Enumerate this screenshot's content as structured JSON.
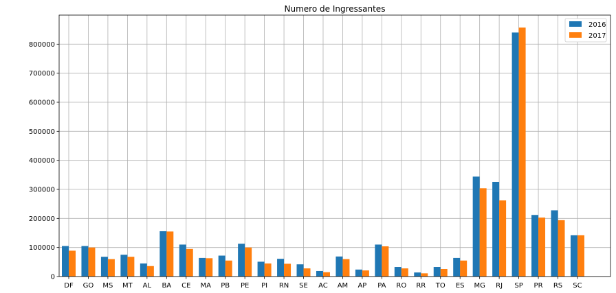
{
  "chart_data": {
    "type": "bar",
    "title": "Numero de Ingressantes",
    "xlabel": "",
    "ylabel": "",
    "categories": [
      "DF",
      "GO",
      "MS",
      "MT",
      "AL",
      "BA",
      "CE",
      "MA",
      "PB",
      "PE",
      "PI",
      "RN",
      "SE",
      "AC",
      "AM",
      "AP",
      "PA",
      "RO",
      "RR",
      "TO",
      "ES",
      "MG",
      "RJ",
      "SP",
      "PR",
      "RS",
      "SC"
    ],
    "series": [
      {
        "name": "2016",
        "color": "#1f77b4",
        "values": [
          105000,
          105000,
          68000,
          75000,
          45000,
          156000,
          110000,
          64000,
          72000,
          113000,
          51000,
          61000,
          42000,
          19000,
          69000,
          24000,
          110000,
          33000,
          14000,
          33000,
          64000,
          344000,
          326000,
          840000,
          212000,
          228000,
          142000
        ]
      },
      {
        "name": "2017",
        "color": "#ff7f0e",
        "values": [
          89000,
          100000,
          60000,
          68000,
          36000,
          155000,
          95000,
          63000,
          55000,
          100000,
          45000,
          44000,
          28000,
          15000,
          60000,
          21000,
          104000,
          28000,
          11000,
          26000,
          55000,
          304000,
          262000,
          857000,
          203000,
          194000,
          142000
        ]
      }
    ],
    "ylim": [
      0,
      900000
    ],
    "yticks": [
      0,
      100000,
      200000,
      300000,
      400000,
      500000,
      600000,
      700000,
      800000
    ],
    "grid": true,
    "legend_position": "top-right"
  }
}
